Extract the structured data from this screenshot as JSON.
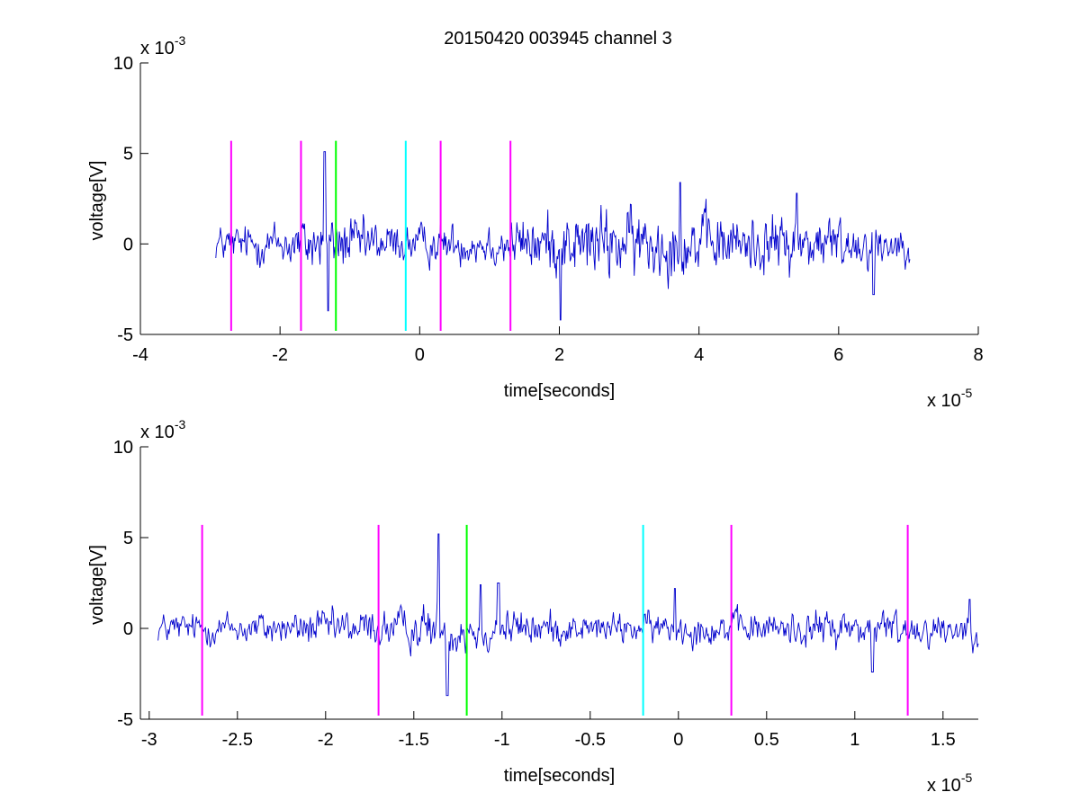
{
  "figure": {
    "title": "20150420 003945 channel 3"
  },
  "chart_data": [
    {
      "type": "line",
      "xlabel": "time[seconds]",
      "ylabel": "voltage[V]",
      "x_exponent_label": "x 10",
      "x_exponent_sup": "-5",
      "y_exponent_label": "x 10",
      "y_exponent_sup": "-3",
      "xlim": [
        -4,
        8
      ],
      "ylim": [
        -5,
        10
      ],
      "xticks": [
        -4,
        -2,
        0,
        2,
        4,
        6,
        8
      ],
      "xtick_labels": [
        "-4",
        "-2",
        "0",
        "2",
        "4",
        "6",
        "8"
      ],
      "yticks": [
        -5,
        0,
        5,
        10
      ],
      "ytick_labels": [
        "-5",
        "0",
        "5",
        "10"
      ],
      "grid": false,
      "signal": {
        "color": "#0000cc",
        "x_start": -2.92,
        "x_end": 7.02,
        "points": 900,
        "envelope": [
          [
            -2.92,
            1.4
          ],
          [
            -2.0,
            1.7
          ],
          [
            -1.4,
            2.4
          ],
          [
            -0.2,
            1.5
          ],
          [
            1.0,
            1.6
          ],
          [
            1.5,
            2.2
          ],
          [
            2.5,
            2.8
          ],
          [
            3.5,
            2.6
          ],
          [
            4.5,
            2.3
          ],
          [
            5.5,
            2.4
          ],
          [
            6.5,
            1.8
          ],
          [
            7.02,
            1.3
          ]
        ],
        "spikes": [
          {
            "x": -1.36,
            "y": 5.1
          },
          {
            "x": -1.31,
            "y": -3.7
          },
          {
            "x": 2.02,
            "y": -4.2
          },
          {
            "x": 3.73,
            "y": 3.4
          },
          {
            "x": 5.4,
            "y": 2.8
          },
          {
            "x": 6.5,
            "y": -2.8
          }
        ]
      },
      "markers": [
        {
          "x": -2.7,
          "color": "#ff00ff"
        },
        {
          "x": -1.7,
          "color": "#ff00ff"
        },
        {
          "x": -1.2,
          "color": "#00ff00"
        },
        {
          "x": -0.2,
          "color": "#00ffff"
        },
        {
          "x": 0.3,
          "color": "#ff00ff"
        },
        {
          "x": 1.3,
          "color": "#ff00ff"
        }
      ],
      "marker_y_range": [
        -4.8,
        5.7
      ]
    },
    {
      "type": "line",
      "xlabel": "time[seconds]",
      "ylabel": "voltage[V]",
      "x_exponent_label": "x 10",
      "x_exponent_sup": "-5",
      "y_exponent_label": "x 10",
      "y_exponent_sup": "-3",
      "xlim": [
        -3.05,
        1.7
      ],
      "ylim": [
        -5,
        10
      ],
      "xticks": [
        -3,
        -2.5,
        -2,
        -1.5,
        -1,
        -0.5,
        0,
        0.5,
        1,
        1.5
      ],
      "xtick_labels": [
        "-3",
        "-2.5",
        "-2",
        "-1.5",
        "-1",
        "-0.5",
        "0",
        "0.5",
        "1",
        "1.5"
      ],
      "yticks": [
        -5,
        0,
        5,
        10
      ],
      "ytick_labels": [
        "-5",
        "0",
        "5",
        "10"
      ],
      "grid": false,
      "signal": {
        "color": "#0000cc",
        "x_start": -2.95,
        "x_end": 1.7,
        "points": 900,
        "envelope": [
          [
            -2.95,
            1.2
          ],
          [
            -2.5,
            1.3
          ],
          [
            -2.0,
            1.5
          ],
          [
            -1.5,
            1.6
          ],
          [
            -1.35,
            2.4
          ],
          [
            -1.0,
            1.7
          ],
          [
            -0.5,
            1.1
          ],
          [
            0.0,
            1.3
          ],
          [
            0.5,
            1.3
          ],
          [
            1.0,
            1.6
          ],
          [
            1.7,
            1.3
          ]
        ],
        "spikes": [
          {
            "x": -1.36,
            "y": 5.2
          },
          {
            "x": -1.31,
            "y": -3.7
          },
          {
            "x": -1.12,
            "y": 2.4
          },
          {
            "x": -1.02,
            "y": 2.5
          },
          {
            "x": -0.02,
            "y": 2.2
          },
          {
            "x": 1.1,
            "y": -2.4
          },
          {
            "x": 1.65,
            "y": 1.6
          }
        ]
      },
      "markers": [
        {
          "x": -2.7,
          "color": "#ff00ff"
        },
        {
          "x": -1.7,
          "color": "#ff00ff"
        },
        {
          "x": -1.2,
          "color": "#00ff00"
        },
        {
          "x": -0.2,
          "color": "#00ffff"
        },
        {
          "x": 0.3,
          "color": "#ff00ff"
        },
        {
          "x": 1.3,
          "color": "#ff00ff"
        }
      ],
      "marker_y_range": [
        -4.8,
        5.7
      ]
    }
  ]
}
